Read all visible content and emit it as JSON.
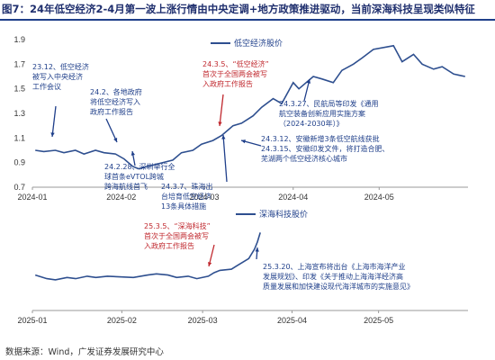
{
  "title": "图7：24年低空经济2-4月第一波上涨行情由中央定调+地方政策推进驱动，当前深海科技呈现类似特征",
  "source": "数据来源：Wind，广发证券发展研究中心",
  "colors": {
    "line": "#2e4f8f",
    "annotation": "#1f3f8a",
    "highlight": "#c0282e"
  },
  "chart_data": [
    {
      "type": "line",
      "series": [
        {
          "name": "低空经济股价"
        }
      ],
      "yticks": [
        "1.9",
        "1.7",
        "1.5",
        "1.3",
        "1.1",
        "0.9",
        "0.7"
      ],
      "ylim": [
        0.7,
        1.9
      ],
      "xticks": [
        "2024-01",
        "2024-02",
        "2024-03",
        "2024-04",
        "2024-05"
      ],
      "x": [
        "2024-01-02",
        "2024-01-05",
        "2024-01-09",
        "2024-01-12",
        "2024-01-16",
        "2024-01-19",
        "2024-01-23",
        "2024-01-26",
        "2024-01-30",
        "2024-02-02",
        "2024-02-05",
        "2024-02-07",
        "2024-02-19",
        "2024-02-22",
        "2024-02-26",
        "2024-02-29",
        "2024-03-04",
        "2024-03-07",
        "2024-03-11",
        "2024-03-14",
        "2024-03-18",
        "2024-03-21",
        "2024-03-25",
        "2024-03-28",
        "2024-04-01",
        "2024-04-03",
        "2024-04-08",
        "2024-04-11",
        "2024-04-15",
        "2024-04-18",
        "2024-04-22",
        "2024-04-25",
        "2024-04-29",
        "2024-05-06",
        "2024-05-09",
        "2024-05-13",
        "2024-05-16",
        "2024-05-20",
        "2024-05-23",
        "2024-05-27",
        "2024-05-31"
      ],
      "values": [
        1.0,
        0.99,
        1.0,
        0.98,
        1.0,
        0.97,
        1.0,
        0.98,
        0.97,
        0.93,
        0.87,
        0.85,
        0.92,
        0.98,
        1.0,
        1.05,
        1.08,
        1.12,
        1.2,
        1.22,
        1.28,
        1.35,
        1.42,
        1.38,
        1.55,
        1.5,
        1.6,
        1.58,
        1.55,
        1.65,
        1.7,
        1.75,
        1.82,
        1.85,
        1.72,
        1.78,
        1.7,
        1.66,
        1.68,
        1.62,
        1.6
      ],
      "annotations": [
        {
          "lines": [
            "23.12、低空经济",
            "被写入中央经济",
            "工作会议"
          ],
          "color": "annotation"
        },
        {
          "lines": [
            "24.2、各地政府",
            "将低空经济写入",
            "政府工作报告"
          ],
          "color": "annotation"
        },
        {
          "lines": [
            "24.3.5、“低空经济”",
            "首次于全国两会被写",
            "入政府工作报告"
          ],
          "color": "highlight"
        },
        {
          "lines": [
            "24.2.28、深圳举行全",
            "球首条eVTOL跨城",
            "跨海航线首飞"
          ],
          "color": "annotation"
        },
        {
          "lines": [
            "24.3.7、珠海出",
            "台培育低空经济",
            "13条具体措施"
          ],
          "color": "annotation"
        },
        {
          "lines": [
            "24.3.12、安徽新增3条低空航线获批",
            "24.3.15、安徽印发文件，将打造合肥、",
            "芜湖两个低空经济核心城市"
          ],
          "color": "annotation"
        },
        {
          "lines": [
            "24.3.27、民航局等印发《通用",
            "航空装备创新应用实施方案",
            "（2024-2030年）》"
          ],
          "color": "annotation"
        }
      ]
    },
    {
      "type": "line",
      "series": [
        {
          "name": "深海科技股价"
        }
      ],
      "xticks": [
        "2025-01",
        "2025-02",
        "2025-03",
        "2025-04",
        "2025-05"
      ],
      "x": [
        "2025-01-02",
        "2025-01-06",
        "2025-01-09",
        "2025-01-13",
        "2025-01-16",
        "2025-01-20",
        "2025-01-23",
        "2025-01-27",
        "2025-02-05",
        "2025-02-10",
        "2025-02-13",
        "2025-02-17",
        "2025-02-20",
        "2025-02-24",
        "2025-02-27",
        "2025-03-03",
        "2025-03-05",
        "2025-03-07",
        "2025-03-11",
        "2025-03-13",
        "2025-03-17",
        "2025-03-19",
        "2025-03-20",
        "2025-03-21"
      ],
      "values": [
        1.0,
        0.97,
        0.96,
        0.98,
        0.97,
        0.99,
        0.98,
        0.99,
        0.98,
        1.0,
        1.01,
        1.0,
        0.98,
        0.99,
        0.97,
        0.99,
        1.02,
        1.04,
        1.05,
        1.08,
        1.14,
        1.22,
        1.28,
        1.36
      ],
      "ylim": [
        0.7,
        1.5
      ],
      "annotations": [
        {
          "lines": [
            "25.3.5、“深海科技”",
            "首次于全国两会被写",
            "入政府工作报告"
          ],
          "color": "highlight"
        },
        {
          "lines": [
            "25.3.20、上海宣布将出台《上海市海洋产业",
            "发展规划》、印发《关于推动上海海洋经济高",
            "质量发展和加快建设现代海洋城市的实施意见》"
          ],
          "color": "annotation"
        }
      ]
    }
  ]
}
